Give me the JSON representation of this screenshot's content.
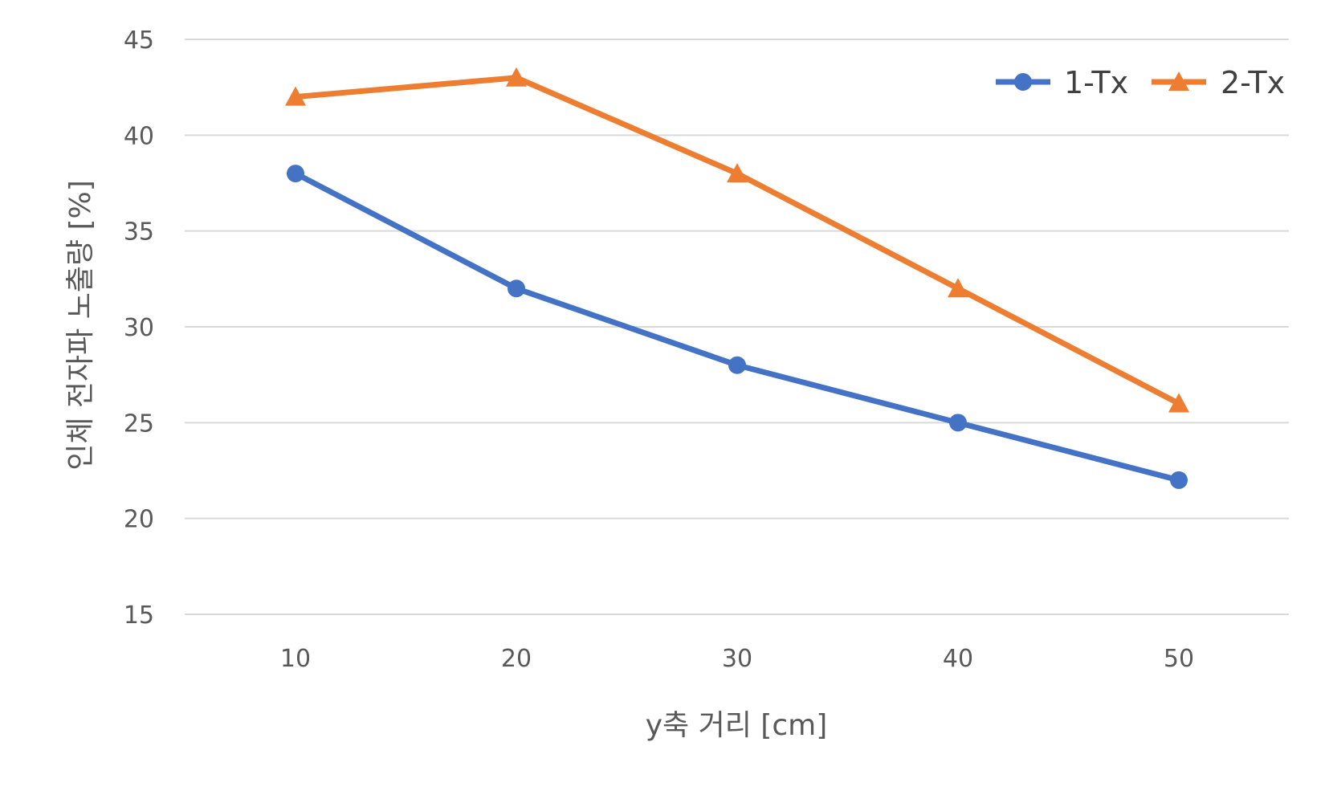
{
  "chart_data": {
    "type": "line",
    "title": "",
    "xlabel": "y축 거리 [cm]",
    "ylabel": "인체 전자파 노출량 [%]",
    "categories": [
      "10",
      "20",
      "30",
      "40",
      "50"
    ],
    "x": [
      10,
      20,
      30,
      40,
      50
    ],
    "ylim": [
      15,
      45
    ],
    "yticks": [
      15,
      20,
      25,
      30,
      35,
      40,
      45
    ],
    "grid": true,
    "legend_position": "top-right",
    "series": [
      {
        "name": "1-Tx",
        "values": [
          38,
          32,
          28,
          25,
          22
        ],
        "color": "#4472C4",
        "marker": "circle"
      },
      {
        "name": "2-Tx",
        "values": [
          42,
          43,
          38,
          32,
          26
        ],
        "color": "#ED7D31",
        "marker": "triangle"
      }
    ]
  }
}
